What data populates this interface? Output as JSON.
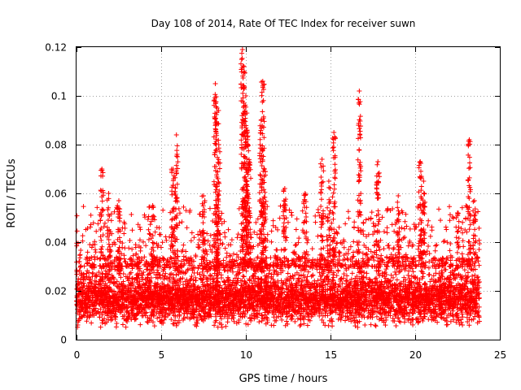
{
  "chart_data": {
    "type": "scatter",
    "title": "Day 108 of 2014, Rate Of TEC Index for receiver suwn",
    "xlabel": "GPS time / hours",
    "ylabel": "ROTI / TECUs",
    "xlim": [
      0,
      25
    ],
    "ylim": [
      0,
      0.12
    ],
    "xticks": [
      0,
      5,
      10,
      15,
      20,
      25
    ],
    "xtick_labels": [
      "0",
      "5",
      "10",
      "15",
      "20",
      "25"
    ],
    "yticks": [
      0,
      0.02,
      0.04,
      0.06,
      0.08,
      0.1,
      0.12
    ],
    "ytick_labels": [
      "0",
      "0.02",
      "0.04",
      "0.06",
      "0.08",
      "0.1",
      "0.12"
    ],
    "grid": true,
    "marker": "+",
    "color": "#ff0000",
    "bulk_band": {
      "x_range": [
        0,
        23.8
      ],
      "y_range": [
        0.005,
        0.03
      ],
      "typical": 0.016
    },
    "spikes": [
      {
        "x": 1.5,
        "y": 0.07
      },
      {
        "x": 1.9,
        "y": 0.06
      },
      {
        "x": 2.5,
        "y": 0.057
      },
      {
        "x": 4.5,
        "y": 0.055
      },
      {
        "x": 5.7,
        "y": 0.07
      },
      {
        "x": 5.9,
        "y": 0.084
      },
      {
        "x": 7.5,
        "y": 0.059
      },
      {
        "x": 8.2,
        "y": 0.105
      },
      {
        "x": 8.3,
        "y": 0.095
      },
      {
        "x": 8.4,
        "y": 0.08
      },
      {
        "x": 9.8,
        "y": 0.119
      },
      {
        "x": 9.9,
        "y": 0.11
      },
      {
        "x": 10.0,
        "y": 0.1
      },
      {
        "x": 10.1,
        "y": 0.085
      },
      {
        "x": 10.2,
        "y": 0.073
      },
      {
        "x": 10.9,
        "y": 0.09
      },
      {
        "x": 11.0,
        "y": 0.106
      },
      {
        "x": 11.1,
        "y": 0.07
      },
      {
        "x": 12.3,
        "y": 0.062
      },
      {
        "x": 13.5,
        "y": 0.06
      },
      {
        "x": 14.5,
        "y": 0.074
      },
      {
        "x": 14.9,
        "y": 0.065
      },
      {
        "x": 15.2,
        "y": 0.085
      },
      {
        "x": 16.7,
        "y": 0.102
      },
      {
        "x": 17.8,
        "y": 0.073
      },
      {
        "x": 19.0,
        "y": 0.059
      },
      {
        "x": 20.3,
        "y": 0.073
      },
      {
        "x": 20.5,
        "y": 0.065
      },
      {
        "x": 22.5,
        "y": 0.052
      },
      {
        "x": 23.2,
        "y": 0.082
      },
      {
        "x": 23.5,
        "y": 0.057
      }
    ]
  }
}
